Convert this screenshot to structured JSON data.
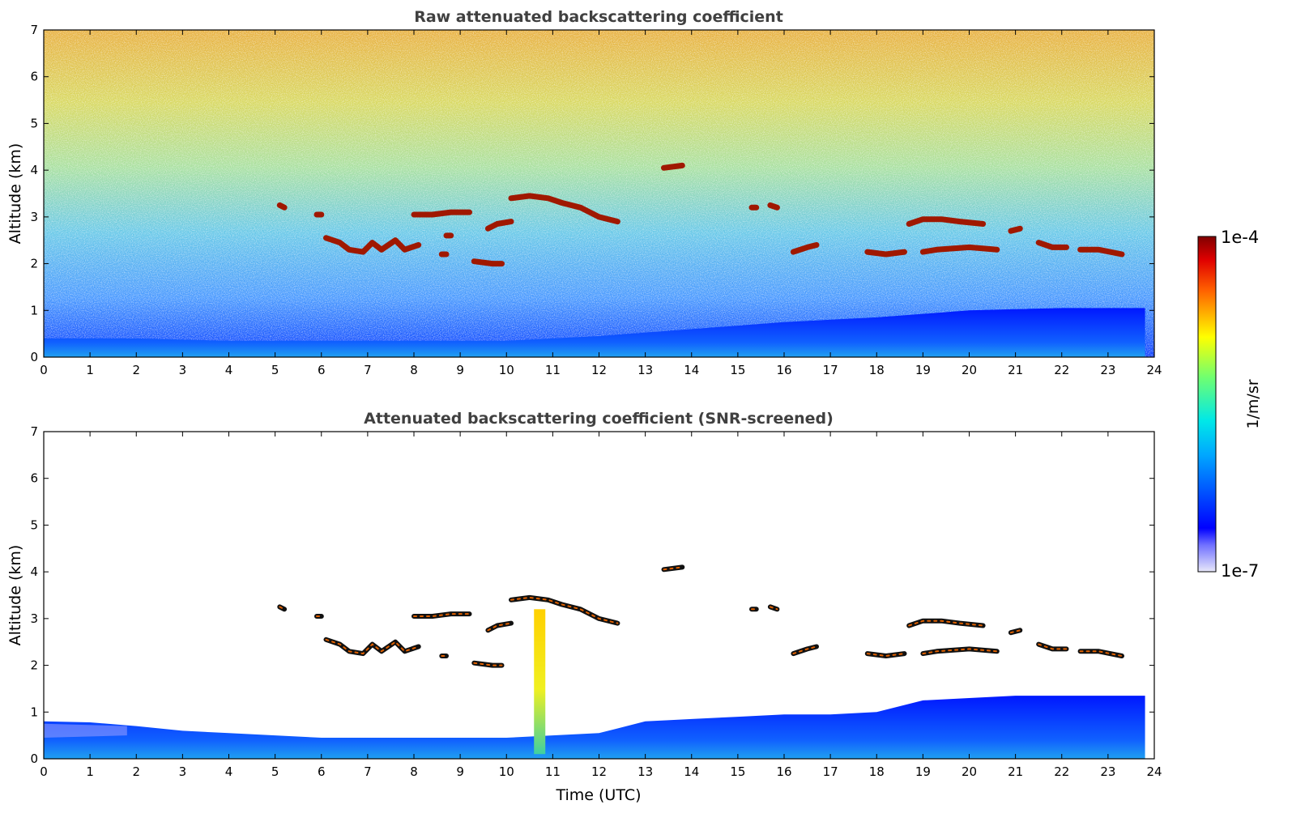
{
  "figure": {
    "xlabel": "Time (UTC)",
    "colorbar": {
      "label": "1/m/sr",
      "top_label": "1e-4",
      "bottom_label": "1e-7",
      "colormap": "jet",
      "scale": "log",
      "range": [
        1e-07,
        0.0001
      ],
      "position": "right"
    }
  },
  "chart_data": [
    {
      "type": "heatmap",
      "title": "Raw attenuated backscattering coefficient",
      "xlabel": "",
      "ylabel": "Altitude (km)",
      "xlim": [
        0,
        24
      ],
      "ylim": [
        0,
        7
      ],
      "xticks": [
        "0",
        "1",
        "2",
        "3",
        "4",
        "5",
        "6",
        "7",
        "8",
        "9",
        "10",
        "11",
        "12",
        "13",
        "14",
        "15",
        "16",
        "17",
        "18",
        "19",
        "20",
        "21",
        "22",
        "23",
        "24"
      ],
      "yticks": [
        "0",
        "1",
        "2",
        "3",
        "4",
        "5",
        "6",
        "7"
      ],
      "grid": false,
      "screened": false,
      "boundary_layer": [
        [
          0,
          0.4
        ],
        [
          2,
          0.4
        ],
        [
          4,
          0.35
        ],
        [
          6,
          0.35
        ],
        [
          8,
          0.35
        ],
        [
          10,
          0.35
        ],
        [
          12,
          0.45
        ],
        [
          14,
          0.6
        ],
        [
          16,
          0.75
        ],
        [
          18,
          0.85
        ],
        [
          20,
          1.0
        ],
        [
          22,
          1.05
        ],
        [
          23.8,
          1.05
        ]
      ],
      "cloud_layers": [
        {
          "points": [
            [
              5.1,
              3.25
            ],
            [
              5.2,
              3.2
            ]
          ]
        },
        {
          "points": [
            [
              5.9,
              3.05
            ],
            [
              6.0,
              3.05
            ]
          ]
        },
        {
          "points": [
            [
              6.1,
              2.55
            ],
            [
              6.4,
              2.45
            ],
            [
              6.6,
              2.3
            ],
            [
              6.9,
              2.25
            ],
            [
              7.1,
              2.45
            ],
            [
              7.3,
              2.3
            ],
            [
              7.6,
              2.5
            ],
            [
              7.8,
              2.3
            ],
            [
              8.1,
              2.4
            ]
          ]
        },
        {
          "points": [
            [
              8.0,
              3.05
            ],
            [
              8.4,
              3.05
            ],
            [
              8.8,
              3.1
            ],
            [
              9.2,
              3.1
            ]
          ]
        },
        {
          "points": [
            [
              8.7,
              2.6
            ],
            [
              8.8,
              2.6
            ]
          ]
        },
        {
          "points": [
            [
              8.6,
              2.2
            ],
            [
              8.7,
              2.2
            ]
          ]
        },
        {
          "points": [
            [
              9.3,
              2.05
            ],
            [
              9.7,
              2.0
            ],
            [
              9.9,
              2.0
            ]
          ]
        },
        {
          "points": [
            [
              9.6,
              2.75
            ],
            [
              9.8,
              2.85
            ],
            [
              10.1,
              2.9
            ]
          ]
        },
        {
          "points": [
            [
              10.1,
              3.4
            ],
            [
              10.5,
              3.45
            ],
            [
              10.9,
              3.4
            ],
            [
              11.2,
              3.3
            ],
            [
              11.6,
              3.2
            ],
            [
              12.0,
              3.0
            ],
            [
              12.4,
              2.9
            ]
          ]
        },
        {
          "points": [
            [
              13.4,
              4.05
            ],
            [
              13.8,
              4.1
            ]
          ]
        },
        {
          "points": [
            [
              15.3,
              3.2
            ],
            [
              15.4,
              3.2
            ]
          ]
        },
        {
          "points": [
            [
              15.7,
              3.25
            ],
            [
              15.85,
              3.2
            ]
          ]
        },
        {
          "points": [
            [
              16.2,
              2.25
            ],
            [
              16.5,
              2.35
            ],
            [
              16.7,
              2.4
            ]
          ]
        },
        {
          "points": [
            [
              17.8,
              2.25
            ],
            [
              18.2,
              2.2
            ],
            [
              18.6,
              2.25
            ]
          ]
        },
        {
          "points": [
            [
              18.7,
              2.85
            ],
            [
              19.0,
              2.95
            ],
            [
              19.4,
              2.95
            ],
            [
              19.8,
              2.9
            ],
            [
              20.3,
              2.85
            ]
          ]
        },
        {
          "points": [
            [
              19.0,
              2.25
            ],
            [
              19.3,
              2.3
            ],
            [
              20.0,
              2.35
            ],
            [
              20.6,
              2.3
            ]
          ]
        },
        {
          "points": [
            [
              20.9,
              2.7
            ],
            [
              21.1,
              2.75
            ]
          ]
        },
        {
          "points": [
            [
              21.5,
              2.45
            ],
            [
              21.8,
              2.35
            ],
            [
              22.1,
              2.35
            ]
          ]
        },
        {
          "points": [
            [
              22.4,
              2.3
            ],
            [
              22.8,
              2.3
            ],
            [
              23.3,
              2.2
            ]
          ]
        }
      ]
    },
    {
      "type": "heatmap",
      "title": "Attenuated backscattering coefficient (SNR-screened)",
      "xlabel": "Time (UTC)",
      "ylabel": "Altitude (km)",
      "xlim": [
        0,
        24
      ],
      "ylim": [
        0,
        7
      ],
      "xticks": [
        "0",
        "1",
        "2",
        "3",
        "4",
        "5",
        "6",
        "7",
        "8",
        "9",
        "10",
        "11",
        "12",
        "13",
        "14",
        "15",
        "16",
        "17",
        "18",
        "19",
        "20",
        "21",
        "22",
        "23",
        "24"
      ],
      "yticks": [
        "0",
        "1",
        "2",
        "3",
        "4",
        "5",
        "6",
        "7"
      ],
      "grid": false,
      "screened": true,
      "boundary_layer": [
        [
          0,
          0.8
        ],
        [
          1,
          0.78
        ],
        [
          2,
          0.7
        ],
        [
          3,
          0.6
        ],
        [
          4,
          0.55
        ],
        [
          5,
          0.5
        ],
        [
          6,
          0.45
        ],
        [
          7,
          0.45
        ],
        [
          8,
          0.45
        ],
        [
          9,
          0.45
        ],
        [
          10,
          0.45
        ],
        [
          11,
          0.5
        ],
        [
          12,
          0.55
        ],
        [
          13,
          0.8
        ],
        [
          14,
          0.85
        ],
        [
          15,
          0.9
        ],
        [
          16,
          0.95
        ],
        [
          17,
          0.95
        ],
        [
          18,
          1.0
        ],
        [
          19,
          1.25
        ],
        [
          20,
          1.3
        ],
        [
          21,
          1.35
        ],
        [
          22,
          1.35
        ],
        [
          23.8,
          1.35
        ]
      ],
      "cloud_layers": [
        {
          "points": [
            [
              5.1,
              3.25
            ],
            [
              5.2,
              3.2
            ]
          ]
        },
        {
          "points": [
            [
              5.9,
              3.05
            ],
            [
              6.0,
              3.05
            ]
          ]
        },
        {
          "points": [
            [
              6.1,
              2.55
            ],
            [
              6.4,
              2.45
            ],
            [
              6.6,
              2.3
            ],
            [
              6.9,
              2.25
            ],
            [
              7.1,
              2.45
            ],
            [
              7.3,
              2.3
            ],
            [
              7.6,
              2.5
            ],
            [
              7.8,
              2.3
            ],
            [
              8.1,
              2.4
            ]
          ]
        },
        {
          "points": [
            [
              8.0,
              3.05
            ],
            [
              8.4,
              3.05
            ],
            [
              8.8,
              3.1
            ],
            [
              9.2,
              3.1
            ]
          ]
        },
        {
          "points": [
            [
              8.6,
              2.2
            ],
            [
              8.7,
              2.2
            ]
          ]
        },
        {
          "points": [
            [
              9.3,
              2.05
            ],
            [
              9.7,
              2.0
            ],
            [
              9.9,
              2.0
            ]
          ]
        },
        {
          "points": [
            [
              9.6,
              2.75
            ],
            [
              9.8,
              2.85
            ],
            [
              10.1,
              2.9
            ]
          ]
        },
        {
          "points": [
            [
              10.1,
              3.4
            ],
            [
              10.5,
              3.45
            ],
            [
              10.9,
              3.4
            ],
            [
              11.2,
              3.3
            ],
            [
              11.6,
              3.2
            ],
            [
              12.0,
              3.0
            ],
            [
              12.4,
              2.9
            ]
          ]
        },
        {
          "points": [
            [
              13.4,
              4.05
            ],
            [
              13.8,
              4.1
            ]
          ]
        },
        {
          "points": [
            [
              15.3,
              3.2
            ],
            [
              15.4,
              3.2
            ]
          ]
        },
        {
          "points": [
            [
              15.7,
              3.25
            ],
            [
              15.85,
              3.2
            ]
          ]
        },
        {
          "points": [
            [
              16.2,
              2.25
            ],
            [
              16.5,
              2.35
            ],
            [
              16.7,
              2.4
            ]
          ]
        },
        {
          "points": [
            [
              17.8,
              2.25
            ],
            [
              18.2,
              2.2
            ],
            [
              18.6,
              2.25
            ]
          ]
        },
        {
          "points": [
            [
              18.7,
              2.85
            ],
            [
              19.0,
              2.95
            ],
            [
              19.4,
              2.95
            ],
            [
              19.8,
              2.9
            ],
            [
              20.3,
              2.85
            ]
          ]
        },
        {
          "points": [
            [
              19.0,
              2.25
            ],
            [
              19.3,
              2.3
            ],
            [
              20.0,
              2.35
            ],
            [
              20.6,
              2.3
            ]
          ]
        },
        {
          "points": [
            [
              20.9,
              2.7
            ],
            [
              21.1,
              2.75
            ]
          ]
        },
        {
          "points": [
            [
              21.5,
              2.45
            ],
            [
              21.8,
              2.35
            ],
            [
              22.1,
              2.35
            ]
          ]
        },
        {
          "points": [
            [
              22.4,
              2.3
            ],
            [
              22.8,
              2.3
            ],
            [
              23.3,
              2.2
            ]
          ]
        }
      ],
      "aerosol_plume": {
        "x": 10.7,
        "y_range": [
          0.1,
          3.2
        ],
        "color": "#f4e000"
      }
    }
  ]
}
